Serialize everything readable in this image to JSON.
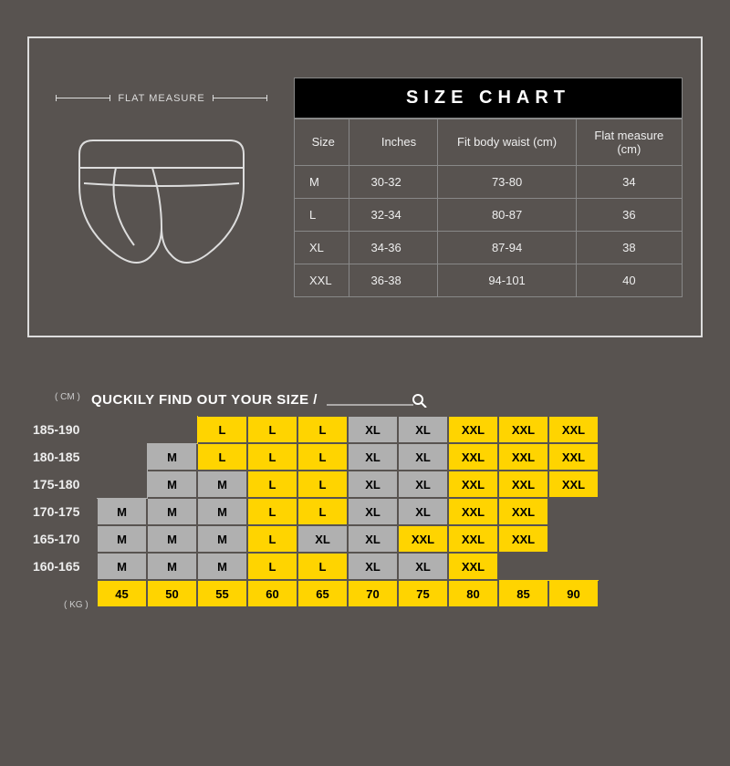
{
  "top": {
    "flat_measure_label": "FLAT  MEASURE",
    "size_chart_title": "SIZE CHART",
    "columns": [
      "Size",
      "Inches",
      "Fit body waist (cm)",
      "Flat measure (cm)"
    ],
    "rows": [
      {
        "size": "M",
        "inches": "30-32",
        "waist": "73-80",
        "flat": "34"
      },
      {
        "size": "L",
        "inches": "32-34",
        "waist": "80-87",
        "flat": "36"
      },
      {
        "size": "XL",
        "inches": "34-36",
        "waist": "87-94",
        "flat": "38"
      },
      {
        "size": "XXL",
        "inches": "36-38",
        "waist": "94-101",
        "flat": "40"
      }
    ]
  },
  "quick": {
    "title": "QUCKILY FIND OUT YOUR SIZE /",
    "unit_height": "( CM )",
    "unit_weight": "( KG )",
    "heights": [
      "185-190",
      "180-185",
      "175-180",
      "170-175",
      "165-170",
      "160-165"
    ],
    "weights": [
      "45",
      "50",
      "55",
      "60",
      "65",
      "70",
      "75",
      "80",
      "85",
      "90"
    ],
    "grid": [
      [
        {
          "v": "",
          "c": "empty"
        },
        {
          "v": "",
          "c": "empty"
        },
        {
          "v": "L",
          "c": "yellow"
        },
        {
          "v": "L",
          "c": "yellow"
        },
        {
          "v": "L",
          "c": "yellow"
        },
        {
          "v": "XL",
          "c": "gray"
        },
        {
          "v": "XL",
          "c": "gray"
        },
        {
          "v": "XXL",
          "c": "yellow"
        },
        {
          "v": "XXL",
          "c": "yellow"
        },
        {
          "v": "XXL",
          "c": "yellow"
        }
      ],
      [
        {
          "v": "",
          "c": "empty"
        },
        {
          "v": "M",
          "c": "gray"
        },
        {
          "v": "L",
          "c": "yellow"
        },
        {
          "v": "L",
          "c": "yellow"
        },
        {
          "v": "L",
          "c": "yellow"
        },
        {
          "v": "XL",
          "c": "gray"
        },
        {
          "v": "XL",
          "c": "gray"
        },
        {
          "v": "XXL",
          "c": "yellow"
        },
        {
          "v": "XXL",
          "c": "yellow"
        },
        {
          "v": "XXL",
          "c": "yellow"
        }
      ],
      [
        {
          "v": "",
          "c": "empty"
        },
        {
          "v": "M",
          "c": "gray"
        },
        {
          "v": "M",
          "c": "gray"
        },
        {
          "v": "L",
          "c": "yellow"
        },
        {
          "v": "L",
          "c": "yellow"
        },
        {
          "v": "XL",
          "c": "gray"
        },
        {
          "v": "XL",
          "c": "gray"
        },
        {
          "v": "XXL",
          "c": "yellow"
        },
        {
          "v": "XXL",
          "c": "yellow"
        },
        {
          "v": "XXL",
          "c": "yellow"
        }
      ],
      [
        {
          "v": "M",
          "c": "gray"
        },
        {
          "v": "M",
          "c": "gray"
        },
        {
          "v": "M",
          "c": "gray"
        },
        {
          "v": "L",
          "c": "yellow"
        },
        {
          "v": "L",
          "c": "yellow"
        },
        {
          "v": "XL",
          "c": "gray"
        },
        {
          "v": "XL",
          "c": "gray"
        },
        {
          "v": "XXL",
          "c": "yellow"
        },
        {
          "v": "XXL",
          "c": "yellow"
        },
        {
          "v": "",
          "c": "empty"
        }
      ],
      [
        {
          "v": "M",
          "c": "gray"
        },
        {
          "v": "M",
          "c": "gray"
        },
        {
          "v": "M",
          "c": "gray"
        },
        {
          "v": "L",
          "c": "yellow"
        },
        {
          "v": "XL",
          "c": "gray"
        },
        {
          "v": "XL",
          "c": "gray"
        },
        {
          "v": "XXL",
          "c": "yellow"
        },
        {
          "v": "XXL",
          "c": "yellow"
        },
        {
          "v": "XXL",
          "c": "yellow"
        },
        {
          "v": "",
          "c": "empty"
        }
      ],
      [
        {
          "v": "M",
          "c": "gray"
        },
        {
          "v": "M",
          "c": "gray"
        },
        {
          "v": "M",
          "c": "gray"
        },
        {
          "v": "L",
          "c": "yellow"
        },
        {
          "v": "L",
          "c": "yellow"
        },
        {
          "v": "XL",
          "c": "gray"
        },
        {
          "v": "XL",
          "c": "gray"
        },
        {
          "v": "XXL",
          "c": "yellow"
        },
        {
          "v": "",
          "c": "empty"
        },
        {
          "v": "",
          "c": "empty"
        }
      ]
    ]
  },
  "colors": {
    "background": "#585350",
    "border": "#dddddd",
    "table_border": "#888888",
    "title_bg": "#000000",
    "title_fg": "#ffffff",
    "cell_yellow": "#ffd400",
    "cell_gray": "#b0b0b0",
    "text_light": "#eeeeee"
  }
}
